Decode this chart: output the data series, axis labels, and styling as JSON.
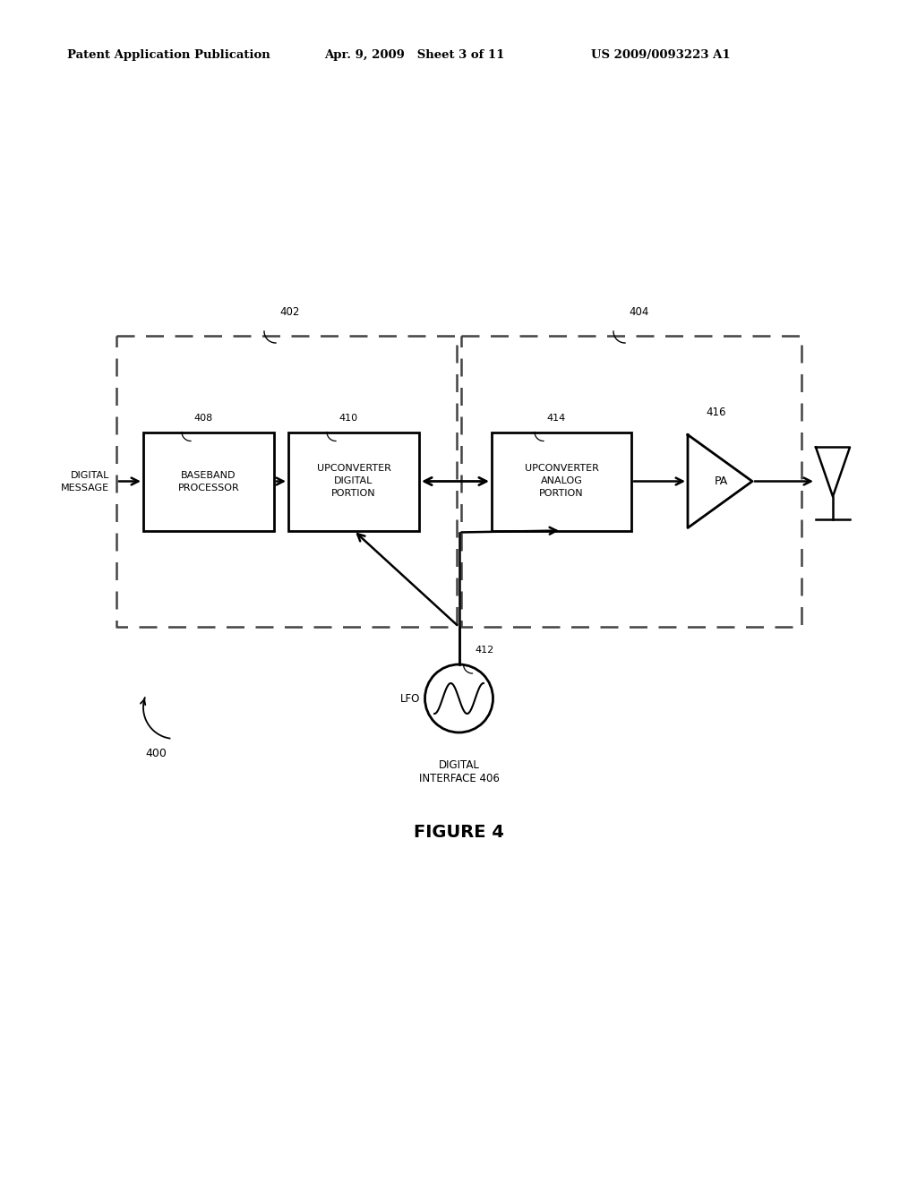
{
  "bg_color": "#ffffff",
  "header_left": "Patent Application Publication",
  "header_mid": "Apr. 9, 2009   Sheet 3 of 11",
  "header_right": "US 2009/0093223 A1",
  "figure_label": "FIGURE 4",
  "label_400": "400",
  "label_402": "402",
  "label_404": "404",
  "label_406": "DIGITAL\nINTERFACE 406",
  "label_408": "408",
  "label_410": "410",
  "label_412": "412",
  "label_414": "414",
  "label_416": "416",
  "box_408_label": "BASEBAND\nPROCESSOR",
  "box_410_label": "UPCONVERTER\nDIGITAL\nPORTION",
  "box_414_label": "UPCONVERTER\nANALOG\nPORTION",
  "pa_label": "PA",
  "lfo_label": "LFO",
  "digital_message_label": "DIGITAL\nMESSAGE"
}
